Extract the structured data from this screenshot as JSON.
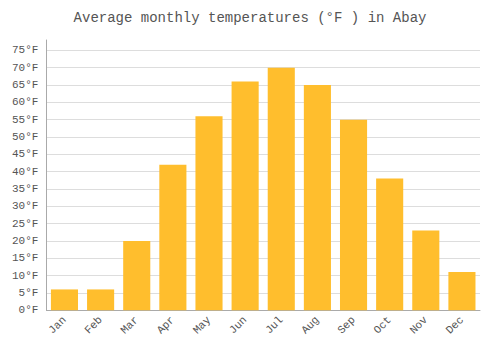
{
  "chart_data": {
    "type": "bar",
    "title": "Average monthly temperatures (°F ) in Abay",
    "categories": [
      "Jan",
      "Feb",
      "Mar",
      "Apr",
      "May",
      "Jun",
      "Jul",
      "Aug",
      "Sep",
      "Oct",
      "Nov",
      "Dec"
    ],
    "values": [
      6,
      6,
      20,
      42,
      56,
      66,
      70,
      65,
      55,
      38,
      23,
      11
    ],
    "color": "#FFBE2D",
    "ylim": [
      0,
      78
    ],
    "yticks": [
      {
        "value": 0,
        "label": "0°F"
      },
      {
        "value": 5,
        "label": "5°F"
      },
      {
        "value": 10,
        "label": "10°F"
      },
      {
        "value": 15,
        "label": "15°F"
      },
      {
        "value": 20,
        "label": "20°F"
      },
      {
        "value": 25,
        "label": "25°F"
      },
      {
        "value": 30,
        "label": "30°F"
      },
      {
        "value": 35,
        "label": "35°F"
      },
      {
        "value": 40,
        "label": "40°F"
      },
      {
        "value": 45,
        "label": "45°F"
      },
      {
        "value": 50,
        "label": "50°F"
      },
      {
        "value": 55,
        "label": "55°F"
      },
      {
        "value": 60,
        "label": "60°F"
      },
      {
        "value": 65,
        "label": "65°F"
      },
      {
        "value": 70,
        "label": "70°F"
      },
      {
        "value": 75,
        "label": "75°F"
      }
    ],
    "grid": true
  }
}
